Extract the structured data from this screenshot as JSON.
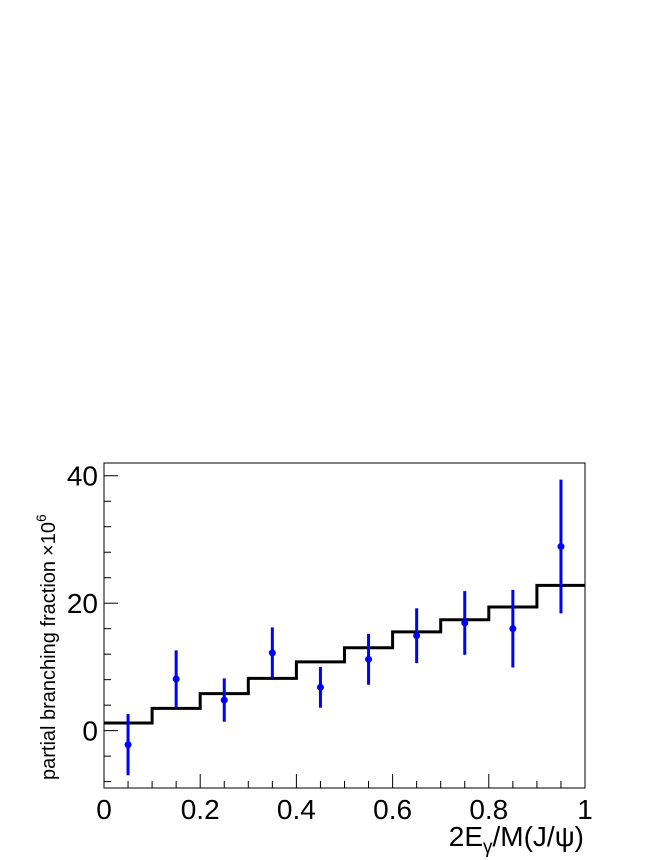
{
  "chart_data": {
    "type": "scatter",
    "title": "",
    "xlabel": {
      "base": "2E",
      "sub": "γ",
      "rest": "/M(J/ψ)"
    },
    "ylabel": {
      "text": "partial branching fraction",
      "times": "×",
      "power_base": "10",
      "power_exp": "6"
    },
    "xlim": [
      0,
      1
    ],
    "ylim": [
      -9,
      42
    ],
    "x_ticks": [
      0,
      0.2,
      0.4,
      0.6,
      0.8,
      1
    ],
    "x_tick_labels": [
      "0",
      "0.2",
      "0.4",
      "0.6",
      "0.8",
      "1"
    ],
    "y_ticks": [
      0,
      20,
      40
    ],
    "y_tick_labels": [
      "0",
      "20",
      "40"
    ],
    "grid": false,
    "legend": "none",
    "colors": {
      "data": "#0000ff",
      "model": "#000000"
    },
    "series": [
      {
        "kind": "points-with-errors",
        "x": [
          0.05,
          0.15,
          0.25,
          0.35,
          0.45,
          0.55,
          0.65,
          0.75,
          0.85,
          0.95
        ],
        "y": [
          -2.2,
          8.1,
          4.8,
          12.2,
          6.8,
          11.2,
          14.9,
          16.9,
          16.0,
          28.9
        ],
        "err_low": [
          4.8,
          4.5,
          3.4,
          4.0,
          3.2,
          4.0,
          4.3,
          5.0,
          6.1,
          10.5
        ],
        "err_high": [
          4.8,
          4.5,
          3.4,
          4.0,
          3.2,
          4.0,
          4.3,
          5.0,
          6.1,
          10.5
        ]
      },
      {
        "kind": "step-histogram",
        "bin_edges": [
          0,
          0.1,
          0.2,
          0.3,
          0.4,
          0.5,
          0.6,
          0.7,
          0.8,
          0.9,
          1.0
        ],
        "values": [
          1.2,
          3.5,
          5.8,
          8.2,
          10.8,
          13.0,
          15.5,
          17.4,
          19.4,
          22.8
        ]
      }
    ]
  }
}
